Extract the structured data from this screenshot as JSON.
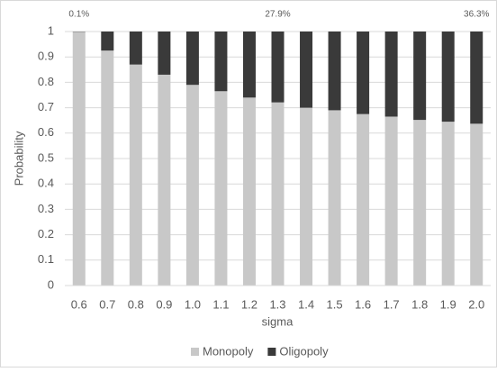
{
  "chart_data": {
    "type": "stacked_bar",
    "x_label": "sigma",
    "y_label": "Probability",
    "categories": [
      "0.6",
      "0.7",
      "0.8",
      "0.9",
      "1.0",
      "1.1",
      "1.2",
      "1.3",
      "1.4",
      "1.5",
      "1.6",
      "1.7",
      "1.8",
      "1.9",
      "2.0"
    ],
    "series": [
      {
        "name": "Monopoly",
        "color": "#c8c8c8",
        "values": [
          0.999,
          0.925,
          0.87,
          0.83,
          0.79,
          0.765,
          0.74,
          0.721,
          0.7,
          0.69,
          0.675,
          0.665,
          0.652,
          0.645,
          0.637
        ]
      },
      {
        "name": "Oligopoly",
        "color": "#3a3a3a",
        "values": [
          0.001,
          0.075,
          0.13,
          0.17,
          0.21,
          0.235,
          0.26,
          0.279,
          0.3,
          0.31,
          0.325,
          0.335,
          0.348,
          0.355,
          0.363
        ],
        "value_labels": [
          "0.1%",
          null,
          null,
          null,
          null,
          null,
          null,
          "27.9%",
          null,
          null,
          null,
          null,
          null,
          null,
          "36.3%"
        ]
      }
    ],
    "ylim": [
      0,
      1
    ],
    "yticks": [
      0,
      0.1,
      0.2,
      0.3,
      0.4,
      0.5,
      0.6,
      0.7,
      0.8,
      0.9,
      1
    ],
    "grid": true,
    "legend": "bottom"
  }
}
